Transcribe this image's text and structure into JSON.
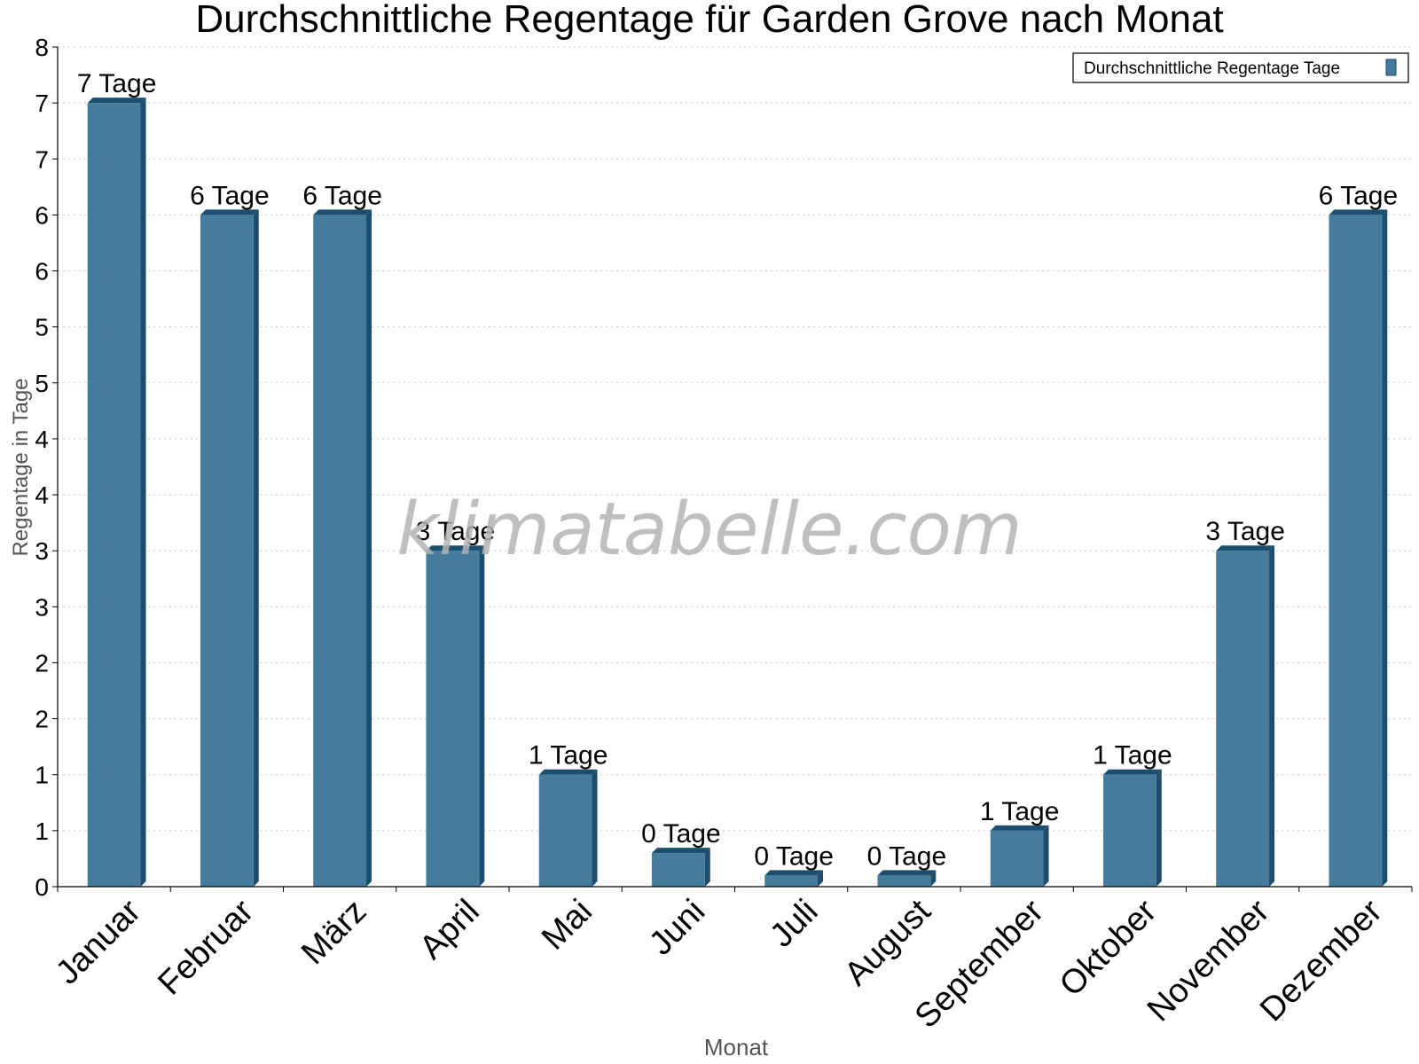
{
  "chart_data": {
    "type": "bar",
    "title": "Durchschnittliche Regentage für Garden Grove nach Monat",
    "xlabel": "Monat",
    "ylabel": "Regentage in Tage",
    "categories": [
      "Januar",
      "Februar",
      "März",
      "April",
      "Mai",
      "Juni",
      "Juli",
      "August",
      "September",
      "Oktober",
      "November",
      "Dezember"
    ],
    "series": [
      {
        "name": "Durchschnittliche Regentage Tage",
        "values": [
          7,
          6,
          6,
          3,
          1,
          0.3,
          0.1,
          0.1,
          0.5,
          1,
          3,
          6
        ],
        "labels": [
          "7 Tage",
          "6 Tage",
          "6 Tage",
          "3 Tage",
          "1 Tage",
          "0 Tage",
          "0 Tage",
          "0 Tage",
          "1 Tage",
          "1 Tage",
          "3 Tage",
          "6 Tage"
        ]
      }
    ],
    "ylim": [
      0,
      7.5
    ],
    "yticks": [
      0,
      0.5,
      1,
      1.5,
      2,
      2.5,
      3,
      3.5,
      4,
      4.5,
      5,
      5.5,
      6,
      6.5,
      7,
      7.5
    ],
    "ytick_labels": [
      "0",
      "1",
      "1",
      "2",
      "2",
      "3",
      "3",
      "4",
      "4",
      "5",
      "5",
      "6",
      "6",
      "7",
      "7",
      "8"
    ],
    "grid": true,
    "legend_position": "top-right",
    "bar_color": "#457b9d",
    "bar_side_color": "#1d4e6e",
    "watermark": "klimatabelle.com"
  }
}
